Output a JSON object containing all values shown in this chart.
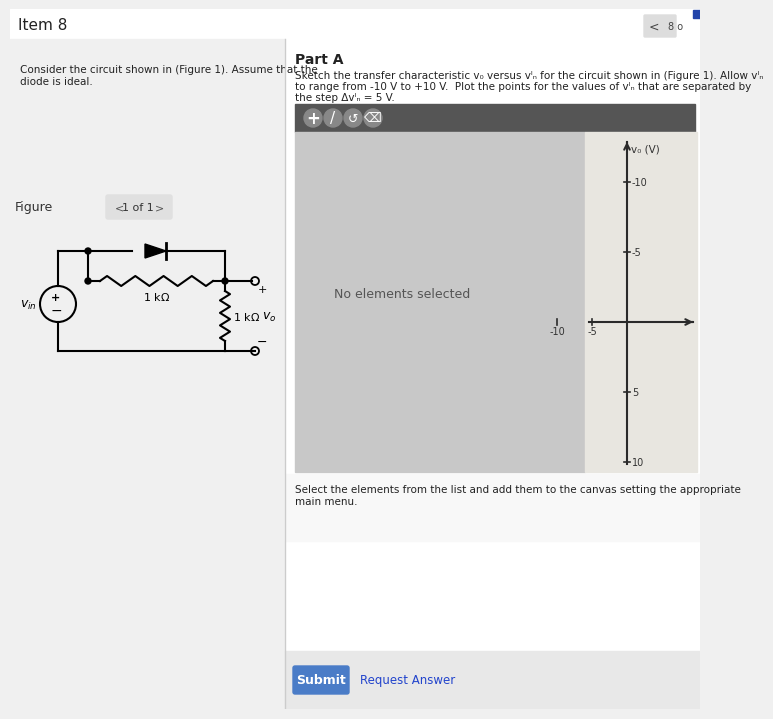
{
  "title": "Item 8",
  "bg_color": "#f0f0f0",
  "header_bg": "#ffffff",
  "left_text_line1": "Consider the circuit shown in (Figure 1). Assume that the",
  "left_text_line2": "diode is ideal.",
  "part_a_title": "Part A",
  "toolbar_bg": "#555555",
  "canvas_bg": "#c8c8c8",
  "canvas_right_bg": "#e8e6e0",
  "no_elements_text": "No elements selected",
  "graph_ylabel": "v₀ (V)",
  "graph_yticks": [
    10,
    5,
    -5,
    -10
  ],
  "graph_xticks": [
    -10,
    -5
  ],
  "select_text_line1": "Select the elements from the list and add them to the canvas setting the appropriate",
  "select_text_line2": "main menu.",
  "figure_label": "igure",
  "page_label": "1 of 1",
  "submit_btn_color": "#4a7cc7",
  "submit_text": "Submit",
  "request_text": "Request Answer",
  "vin_label": "$v_{in}$",
  "vo_label": "$v_o$",
  "r1_label": "1 k$\\Omega$",
  "r2_label": "1 k$\\Omega$",
  "item8_nav_text": "8 o",
  "part_a_desc1": "Sketch the transfer characteristic v₀ versus vᴵₙ for the circuit shown in (Figure 1). Allow vᴵₙ",
  "part_a_desc2": "to range from -10 V to +10 V.  Plot the points for the values of vᴵₙ that are separated by",
  "part_a_desc3": "the step Δvᴵₙ = 5 V."
}
